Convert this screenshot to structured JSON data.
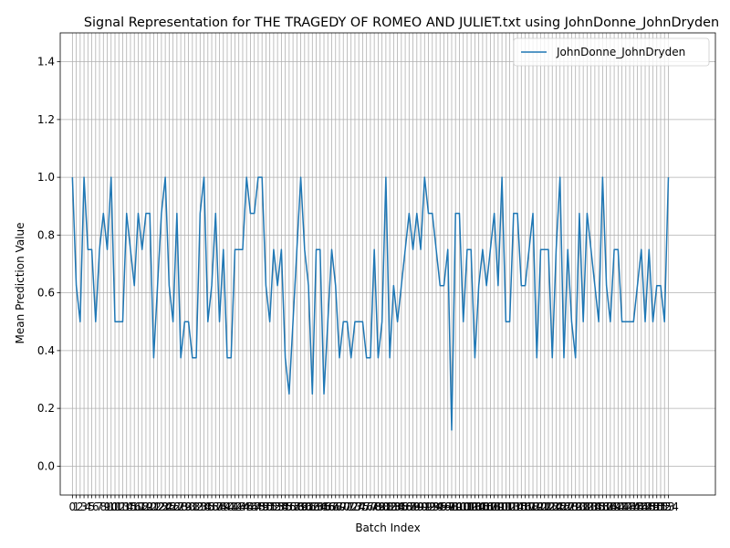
{
  "chart_data": {
    "type": "line",
    "title": "Signal Representation for THE TRAGEDY OF ROMEO AND JULIET.txt using JohnDonne_JohnDryden",
    "xlabel": "Batch Index",
    "ylabel": "Mean Prediction Value",
    "ylim": [
      -0.1,
      1.5
    ],
    "xlim": [
      -3.15,
      166.15
    ],
    "yticks": [
      0.0,
      0.2,
      0.4,
      0.6,
      0.8,
      1.0,
      1.2,
      1.4
    ],
    "grid": true,
    "legend": "top-right",
    "series": [
      {
        "name": "JohnDonne_JohnDryden",
        "color": "#1f77b4",
        "values": [
          1.0,
          0.625,
          0.5,
          1.0,
          0.75,
          0.75,
          0.5,
          0.75,
          0.875,
          0.75,
          1.0,
          0.5,
          0.5,
          0.5,
          0.875,
          0.75,
          0.625,
          0.875,
          0.75,
          0.875,
          0.875,
          0.375,
          0.625,
          0.875,
          1.0,
          0.625,
          0.5,
          0.875,
          0.375,
          0.5,
          0.5,
          0.375,
          0.375,
          0.875,
          1.0,
          0.5,
          0.625,
          0.875,
          0.5,
          0.75,
          0.375,
          0.375,
          0.75,
          0.75,
          0.75,
          1.0,
          0.875,
          0.875,
          1.0,
          1.0,
          0.625,
          0.5,
          0.75,
          0.625,
          0.75,
          0.375,
          0.25,
          0.5,
          0.75,
          1.0,
          0.75,
          0.625,
          0.25,
          0.75,
          0.75,
          0.25,
          0.5,
          0.75,
          0.625,
          0.375,
          0.5,
          0.5,
          0.375,
          0.5,
          0.5,
          0.5,
          0.375,
          0.375,
          0.75,
          0.375,
          0.5,
          1.0,
          0.375,
          0.625,
          0.5,
          0.625,
          0.75,
          0.875,
          0.75,
          0.875,
          0.75,
          1.0,
          0.875,
          0.875,
          0.75,
          0.625,
          0.625,
          0.75,
          0.125,
          0.875,
          0.875,
          0.5,
          0.75,
          0.75,
          0.375,
          0.625,
          0.75,
          0.625,
          0.75,
          0.875,
          0.625,
          1.0,
          0.5,
          0.5,
          0.875,
          0.875,
          0.625,
          0.625,
          0.75,
          0.875,
          0.375,
          0.75,
          0.75,
          0.75,
          0.375,
          0.75,
          1.0,
          0.375,
          0.75,
          0.5,
          0.375,
          0.875,
          0.5,
          0.875,
          0.75,
          0.625,
          0.5,
          1.0,
          0.625,
          0.5,
          0.75,
          0.75,
          0.5,
          0.5,
          0.5,
          0.5,
          0.625,
          0.75,
          0.5,
          0.75,
          0.5,
          0.625,
          0.625,
          0.5,
          1.0
        ]
      }
    ]
  }
}
